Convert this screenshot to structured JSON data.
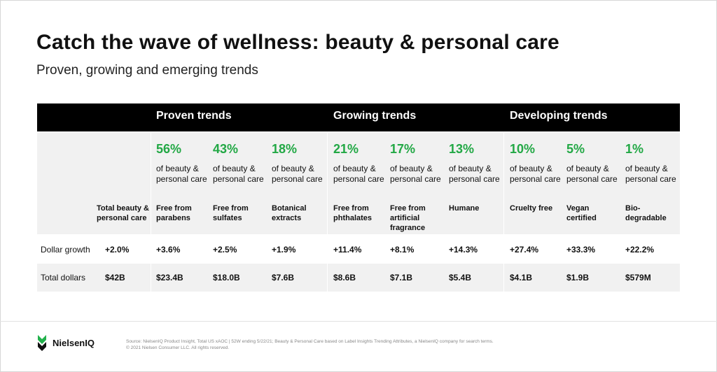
{
  "title": "Catch the wave of wellness: beauty & personal care",
  "subtitle": "Proven, growing and emerging trends",
  "groups": [
    "Proven trends",
    "Growing trends",
    "Developing trends"
  ],
  "row_labels": {
    "growth": "Dollar growth",
    "dollars": "Total dollars"
  },
  "share_text": "of beauty & personal care",
  "colors": {
    "accent_green": "#22a845",
    "header_bg": "#000000",
    "band_bg": "#f1f1f1"
  },
  "chart_data": {
    "type": "table",
    "columns": [
      {
        "name": "Total beauty & personal care",
        "share": "",
        "growth": "+2.0%",
        "dollars": "$42B"
      },
      {
        "name": "Free from parabens",
        "group": "Proven trends",
        "share": "56%",
        "growth": "+3.6%",
        "dollars": "$23.4B"
      },
      {
        "name": "Free from sulfates",
        "group": "Proven trends",
        "share": "43%",
        "growth": "+2.5%",
        "dollars": "$18.0B"
      },
      {
        "name": "Botanical extracts",
        "group": "Proven trends",
        "share": "18%",
        "growth": "+1.9%",
        "dollars": "$7.6B"
      },
      {
        "name": "Free from phthalates",
        "group": "Growing trends",
        "share": "21%",
        "growth": "+11.4%",
        "dollars": "$8.6B"
      },
      {
        "name": "Free from artificial fragrance",
        "group": "Growing trends",
        "share": "17%",
        "growth": "+8.1%",
        "dollars": "$7.1B"
      },
      {
        "name": "Humane",
        "group": "Growing trends",
        "share": "13%",
        "growth": "+14.3%",
        "dollars": "$5.4B"
      },
      {
        "name": "Cruelty free",
        "group": "Developing trends",
        "share": "10%",
        "growth": "+27.4%",
        "dollars": "$4.1B"
      },
      {
        "name": "Vegan certified",
        "group": "Developing trends",
        "share": "5%",
        "growth": "+33.3%",
        "dollars": "$1.9B"
      },
      {
        "name": "Bio-degradable",
        "group": "Developing trends",
        "share": "1%",
        "growth": "+22.2%",
        "dollars": "$579M"
      }
    ]
  },
  "footer": {
    "brand": "NielsenIQ",
    "source": "Source: NielsenIQ Product Insight, Total US xAOC | 52W ending 5/22/21; Beauty & Personal Care based on Label Insights Trending Attributes, a NielsenIQ company for search terms.",
    "copyright": "© 2021 Nielsen Consumer LLC. All rights reserved."
  }
}
